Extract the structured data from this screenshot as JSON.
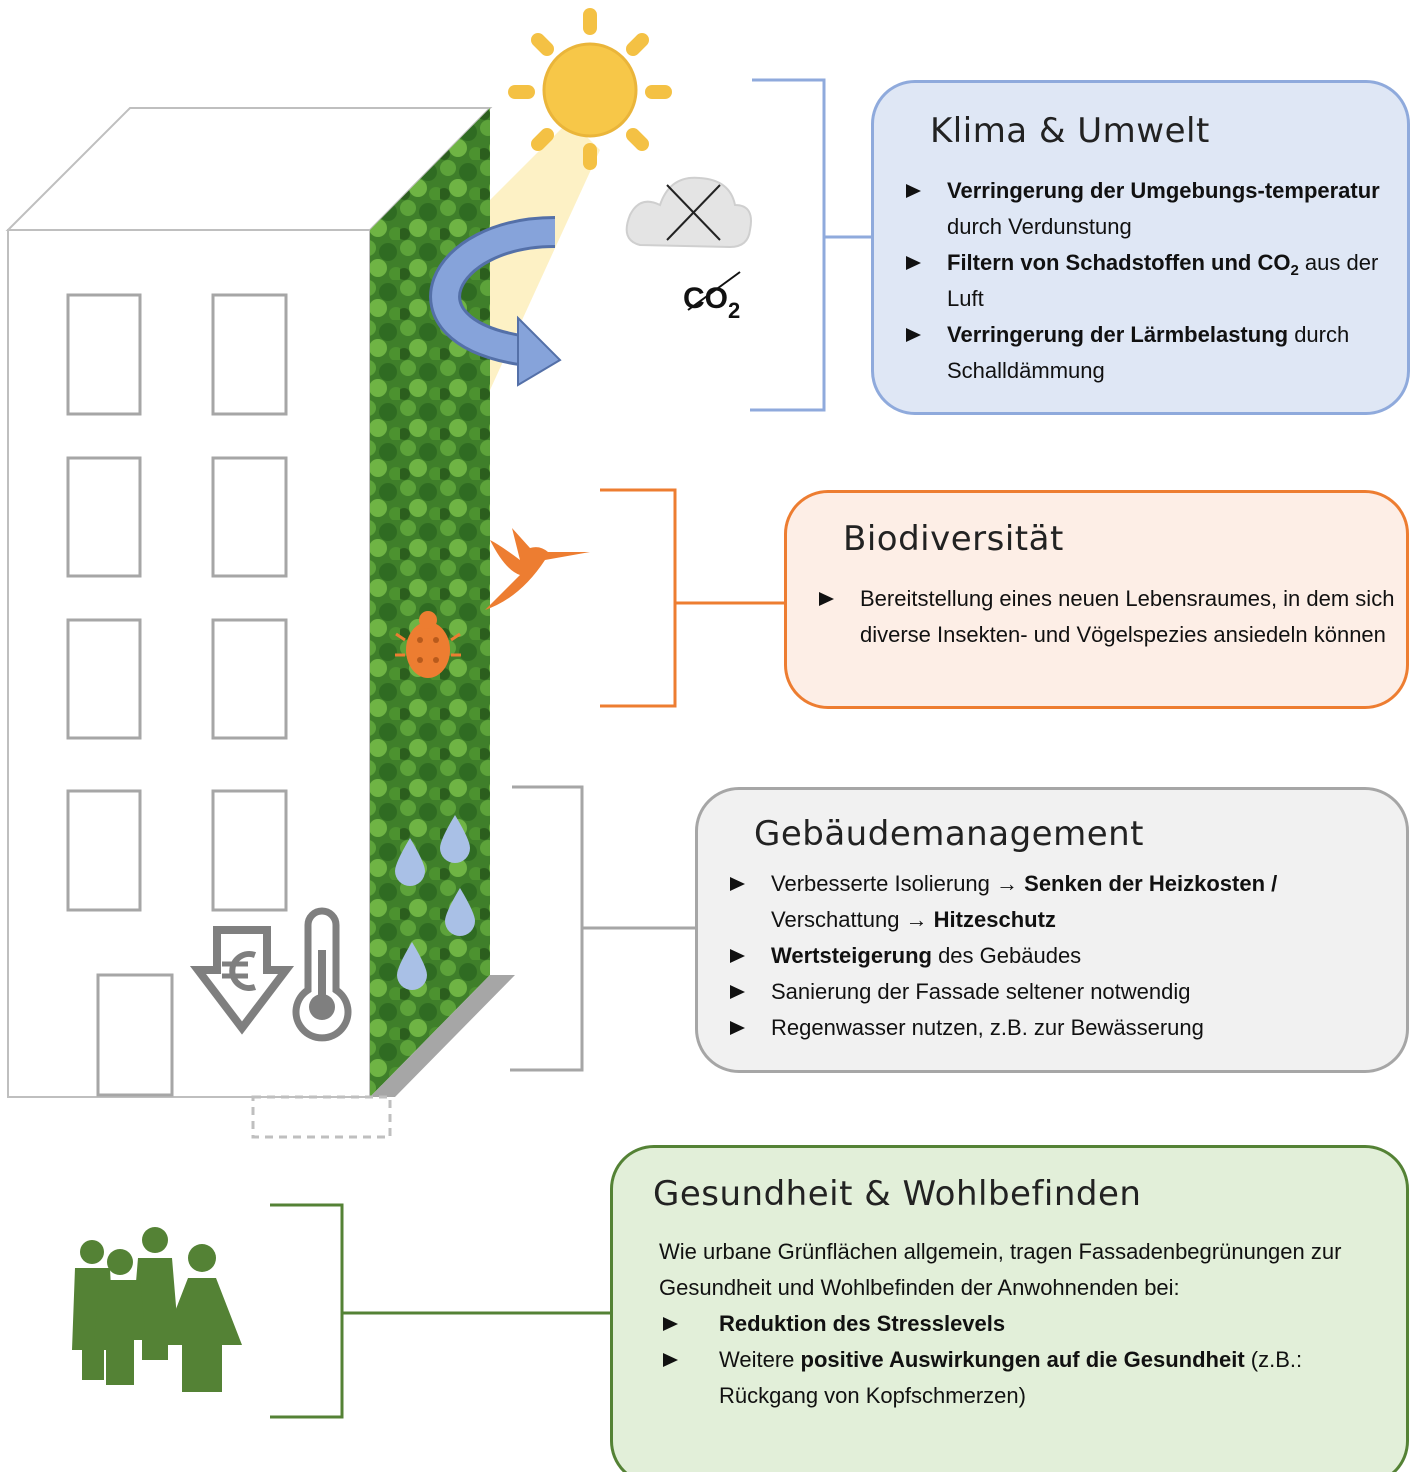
{
  "co2_icon": {
    "text": "CO",
    "subscript": "2"
  },
  "panels": [
    {
      "title": "Klima & Umwelt",
      "items": [
        [
          {
            "text": "Verringerung der Umgebungs-temperatur",
            "bold": true
          },
          {
            "text": " durch Verdunstung"
          }
        ],
        [
          {
            "text": "Filtern von Schadstoffen und CO",
            "bold": true
          },
          {
            "text": "2",
            "bold": true,
            "subscript": true
          },
          {
            "text": " aus der Luft"
          }
        ],
        [
          {
            "text": "Verringerung der Lärmbelastung",
            "bold": true
          },
          {
            "text": " durch Schalldämmung"
          }
        ]
      ]
    },
    {
      "title": "Biodiversität",
      "items": [
        [
          {
            "text": "Bereitstellung eines neuen Lebensraumes, in dem sich diverse Insekten- und Vögelspezies ansiedeln können"
          }
        ]
      ]
    },
    {
      "title": "Gebäudemanagement",
      "items": [
        [
          {
            "text": "Verbesserte Isolierung "
          },
          {
            "text": "→ Senken der Heizkosten /",
            "bold": true
          },
          {
            "text": " Verschattung "
          },
          {
            "text": "→ Hitzeschutz",
            "bold": true
          }
        ],
        [
          {
            "text": "Wertsteigerung",
            "bold": true
          },
          {
            "text": " des Gebäudes"
          }
        ],
        [
          {
            "text": "Sanierung der Fassade seltener notwendig"
          }
        ],
        [
          {
            "text": "Regenwasser nutzen, z.B. zur Bewässerung"
          }
        ]
      ]
    },
    {
      "title": "Gesundheit & Wohlbefinden",
      "intro": "Wie urbane Grünflächen allgemein, tragen Fassadenbegrünungen zur Gesundheit und Wohlbefinden der Anwohnenden bei:",
      "items": [
        [
          {
            "text": "Reduktion des Stresslevels",
            "bold": true
          }
        ],
        [
          {
            "text": "Weitere "
          },
          {
            "text": "positive Auswirkungen auf die Gesundheit",
            "bold": true
          },
          {
            "text": " (z.B.: Rückgang von Kopfschmerzen)"
          }
        ]
      ]
    }
  ]
}
